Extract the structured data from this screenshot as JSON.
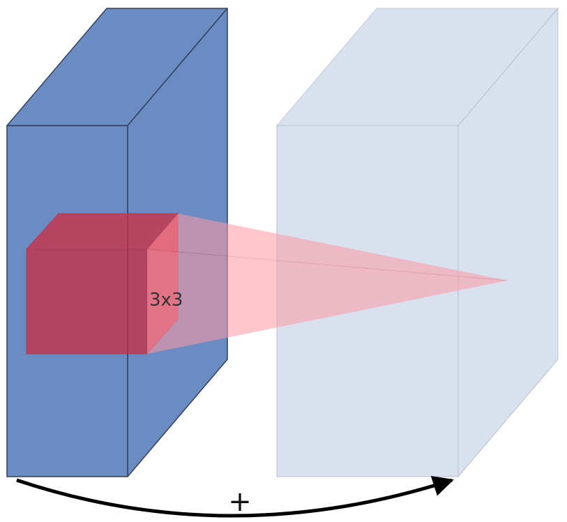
{
  "diagram": {
    "kernel_label": "3x3",
    "plus_label": "+"
  },
  "colors": {
    "input_block": "#6b8cc2",
    "input_block_edge": "#33415c",
    "output_block": "#d9e0ee",
    "output_block_edge": "#b8c0cf",
    "kernel": "#cc3344",
    "projection": "#ff9aa4",
    "arrow": "#000000"
  },
  "icons": {
    "arrow_head": "arrowhead-icon"
  }
}
